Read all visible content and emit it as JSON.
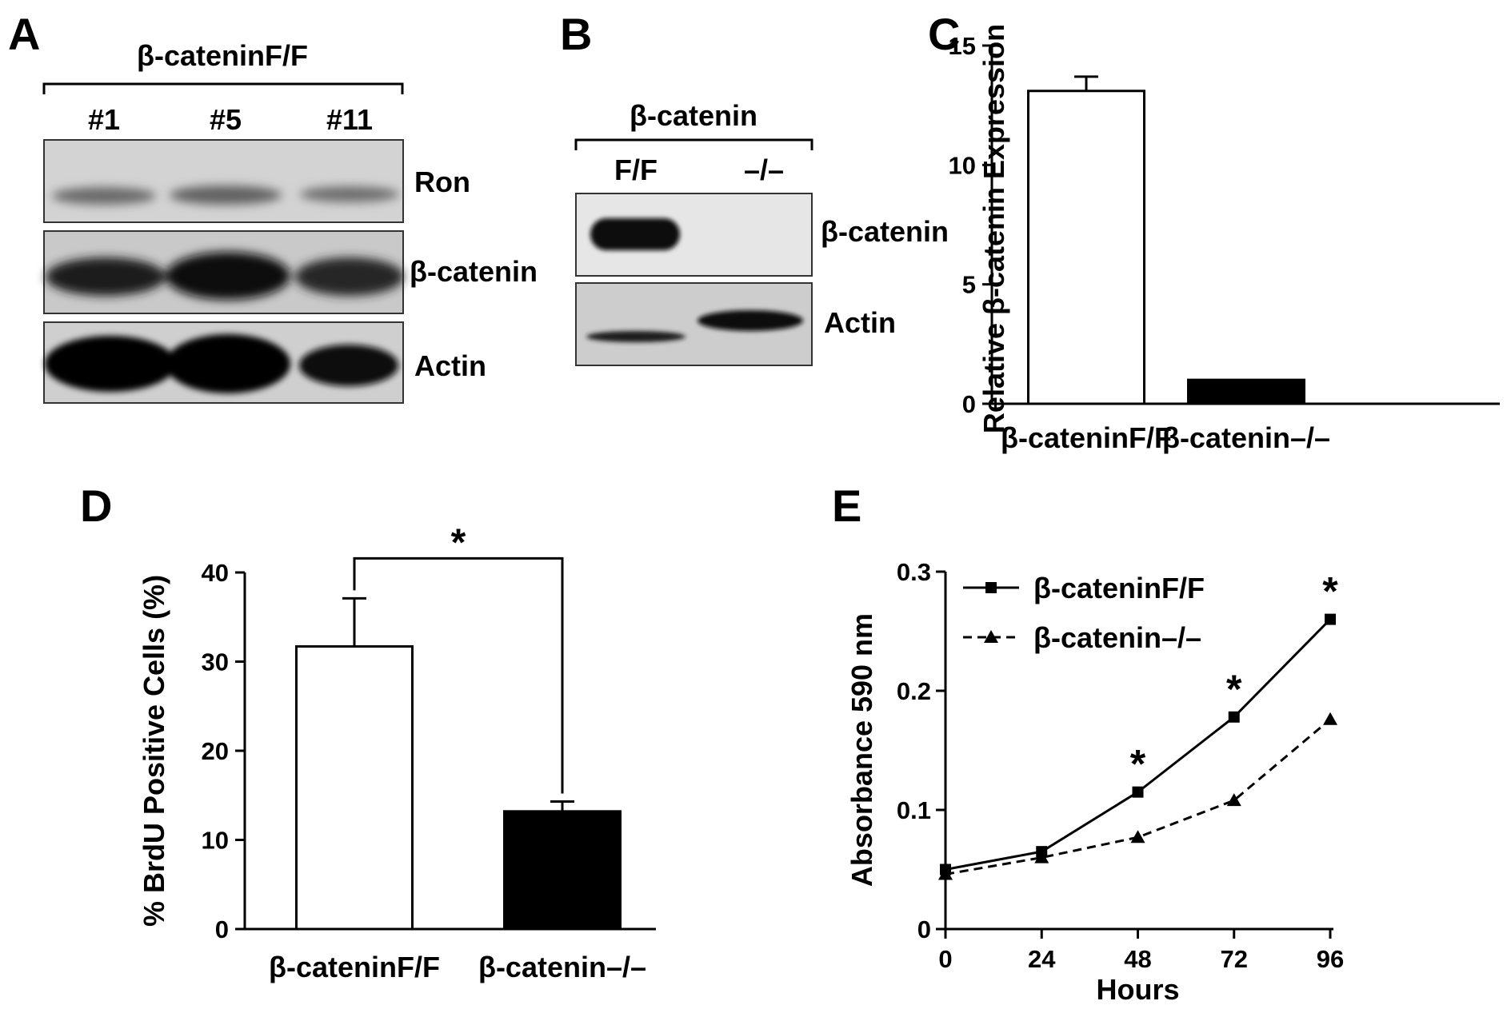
{
  "panel_a": {
    "letter": "A",
    "header": "β-cateninF/F",
    "lanes": [
      "#1",
      "#5",
      "#11"
    ],
    "bands": [
      "Ron",
      "β-catenin",
      "Actin"
    ]
  },
  "panel_b": {
    "letter": "B",
    "header": "β-catenin",
    "lanes": [
      "F/F",
      "–/–"
    ],
    "bands": [
      "β-catenin",
      "Actin"
    ]
  },
  "chart_data": [
    {
      "panel": "C",
      "type": "bar",
      "categories": [
        "β-cateninF/F",
        "β-catenin–/–"
      ],
      "values": [
        13.1,
        1.0
      ],
      "errors": [
        0.6,
        0
      ],
      "bar_colors": [
        "#ffffff",
        "#000000"
      ],
      "ylabel": "Relative β-catenin Expression",
      "ylim": [
        0,
        15
      ],
      "yticks": [
        0,
        5,
        10,
        15
      ],
      "grid": false
    },
    {
      "panel": "D",
      "type": "bar",
      "categories": [
        "β-cateninF/F",
        "β-catenin–/–"
      ],
      "values": [
        31.7,
        13.2
      ],
      "errors": [
        5.4,
        1.1
      ],
      "bar_colors": [
        "#ffffff",
        "#000000"
      ],
      "ylabel": "% BrdU Positive Cells (%)",
      "ylim": [
        0,
        40
      ],
      "yticks": [
        0,
        10,
        20,
        30,
        40
      ],
      "significance": "*",
      "grid": false
    },
    {
      "panel": "E",
      "type": "line",
      "x": [
        0,
        24,
        48,
        72,
        96
      ],
      "series": [
        {
          "name": "β-cateninF/F",
          "values": [
            0.05,
            0.065,
            0.115,
            0.178,
            0.26
          ],
          "marker": "square",
          "dash": false
        },
        {
          "name": "β-catenin–/–",
          "values": [
            0.046,
            0.06,
            0.077,
            0.108,
            0.176
          ],
          "marker": "triangle",
          "dash": true
        }
      ],
      "significance_at": [
        48,
        72,
        96
      ],
      "significance_mark": "*",
      "xlabel": "Hours",
      "ylabel": "Absorbance 590 nm",
      "xlim": [
        0,
        96
      ],
      "ylim": [
        0,
        0.3
      ],
      "xticks": [
        0,
        24,
        48,
        72,
        96
      ],
      "yticks": [
        "0",
        "0.1",
        "0.2",
        "0.3"
      ],
      "legend": "top-left",
      "grid": false
    }
  ]
}
